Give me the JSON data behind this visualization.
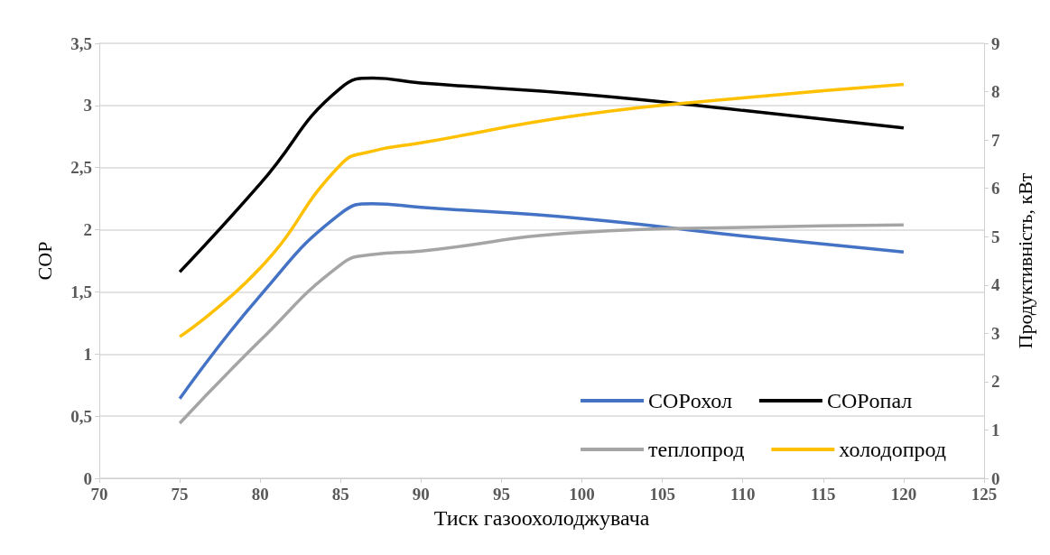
{
  "chart_data": {
    "type": "line",
    "xlabel": "Тиск газоохолоджувача",
    "ylabel": "COP",
    "y2label": "Продуктивність, кВт",
    "x": [
      75,
      80,
      85,
      87,
      90,
      100,
      110,
      120
    ],
    "series": [
      {
        "name": "COPохол",
        "color": "#4472c4",
        "values": [
          0.64,
          1.47,
          2.13,
          2.21,
          2.18,
          2.09,
          1.95,
          1.82
        ]
      },
      {
        "name": "COPопал",
        "color": "#000000",
        "values": [
          1.66,
          2.37,
          3.14,
          3.22,
          3.18,
          3.09,
          2.96,
          2.82
        ]
      },
      {
        "name": "теплопрод",
        "color": "#a5a5a5",
        "axis": "y2",
        "values": [
          1.14,
          2.85,
          4.42,
          4.63,
          4.7,
          5.09,
          5.19,
          5.24
        ]
      },
      {
        "name": "холодопрод",
        "color": "#ffc000",
        "axis": "y2",
        "values": [
          2.93,
          4.35,
          6.49,
          6.77,
          6.94,
          7.52,
          7.87,
          8.15
        ]
      }
    ],
    "xlim": [
      70,
      125
    ],
    "xticks": [
      70,
      75,
      80,
      85,
      90,
      95,
      100,
      105,
      110,
      115,
      120,
      125
    ],
    "ylim": [
      0,
      3.5
    ],
    "yticks": [
      0,
      {
        "value": 0.5,
        "label": "0,5"
      },
      1,
      {
        "value": 1.5,
        "label": "1,5"
      },
      2,
      {
        "value": 2.5,
        "label": "2,5"
      },
      3,
      {
        "value": 3.5,
        "label": "3,5"
      }
    ],
    "y2lim": [
      0,
      9
    ],
    "y2ticks": [
      0,
      1,
      2,
      3,
      4,
      5,
      6,
      7,
      8,
      9
    ],
    "grid": "y",
    "legend": "bottom right",
    "marker": "none",
    "line_style": "solid"
  }
}
